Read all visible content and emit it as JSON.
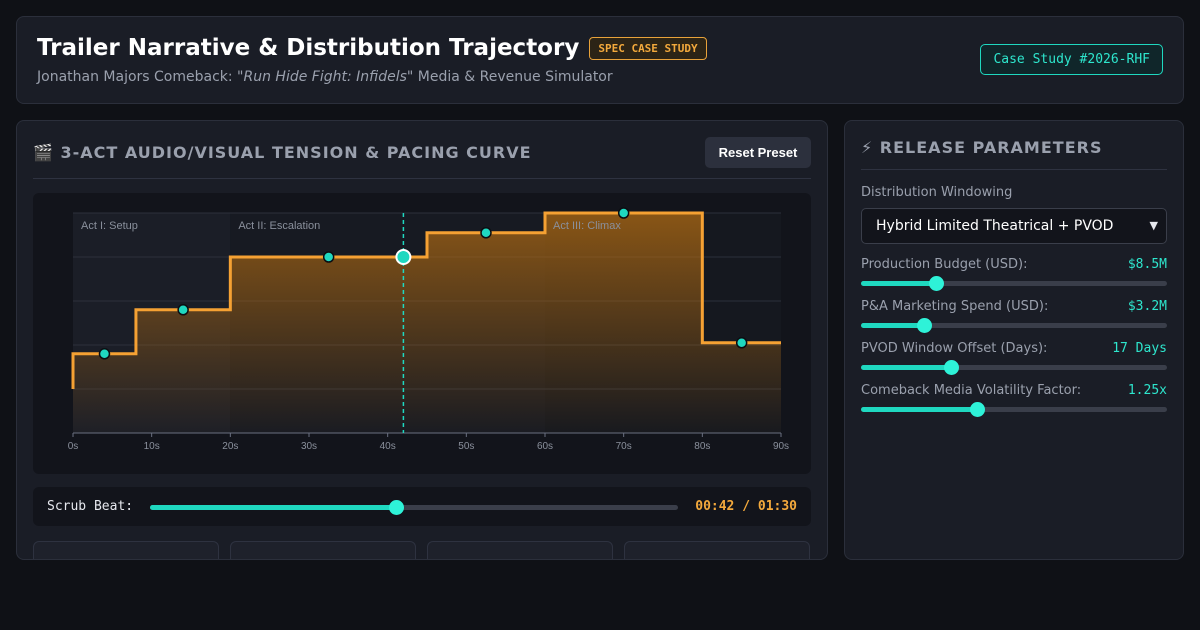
{
  "header": {
    "title": "Trailer Narrative & Distribution Trajectory",
    "badge": "SPEC CASE STUDY",
    "subtitle_prefix": "Jonathan Majors Comeback: \"",
    "subtitle_italic": "Run Hide Fight: Infidels",
    "subtitle_suffix": "\" Media & Revenue Simulator",
    "case_id": "Case Study #2026-RHF"
  },
  "pacing": {
    "title_icon": "clapper-icon",
    "title": "🎬 3-ACT AUDIO/VISUAL TENSION & PACING CURVE",
    "reset_label": "Reset Preset"
  },
  "chart_data": {
    "type": "line",
    "step": true,
    "xlim": [
      0,
      90
    ],
    "ylim": [
      0,
      100
    ],
    "x_ticks": [
      "0s",
      "10s",
      "20s",
      "30s",
      "40s",
      "50s",
      "60s",
      "70s",
      "80s",
      "90s"
    ],
    "grid": true,
    "acts": [
      {
        "label": "Act I: Setup",
        "start": 0,
        "end": 20
      },
      {
        "label": "Act II: Escalation",
        "start": 20,
        "end": 60
      },
      {
        "label": "Act III: Climax",
        "start": 60,
        "end": 90
      }
    ],
    "steps": [
      {
        "x0": 0,
        "x1": 8,
        "y": 36
      },
      {
        "x0": 8,
        "x1": 20,
        "y": 56
      },
      {
        "x0": 20,
        "x1": 45,
        "y": 80
      },
      {
        "x0": 45,
        "x1": 60,
        "y": 91
      },
      {
        "x0": 60,
        "x1": 80,
        "y": 100
      },
      {
        "x0": 80,
        "x1": 90,
        "y": 41
      }
    ],
    "start_y": 20,
    "beats": [
      {
        "x": 4,
        "y": 36
      },
      {
        "x": 14,
        "y": 56
      },
      {
        "x": 32.5,
        "y": 80
      },
      {
        "x": 52.5,
        "y": 91
      },
      {
        "x": 70,
        "y": 100
      },
      {
        "x": 85,
        "y": 41
      }
    ],
    "playhead": {
      "x": 42,
      "y": 80
    }
  },
  "scrub": {
    "label": "Scrub Beat:",
    "current": "00:42",
    "total": "01:30",
    "time_text": "00:42 / 01:30",
    "position_seconds": 42,
    "duration_seconds": 90
  },
  "release": {
    "title": "⚡ RELEASE PARAMETERS",
    "title_icon": "lightning-icon",
    "window_label": "Distribution Windowing",
    "window_value": "Hybrid Limited Theatrical + PVOD",
    "params": [
      {
        "label": "Production Budget (USD):",
        "value": "$8.5M",
        "fraction": 0.245
      },
      {
        "label": "P&A Marketing Spend (USD):",
        "value": "$3.2M",
        "fraction": 0.205
      },
      {
        "label": "PVOD Window Offset (Days):",
        "value": "17 Days",
        "fraction": 0.295
      },
      {
        "label": "Comeback Media Volatility Factor:",
        "value": "1.25x",
        "fraction": 0.38
      }
    ]
  },
  "colors": {
    "accent": "#1fd8c0",
    "orange": "#f3a93c",
    "panel": "#1a1d26"
  }
}
